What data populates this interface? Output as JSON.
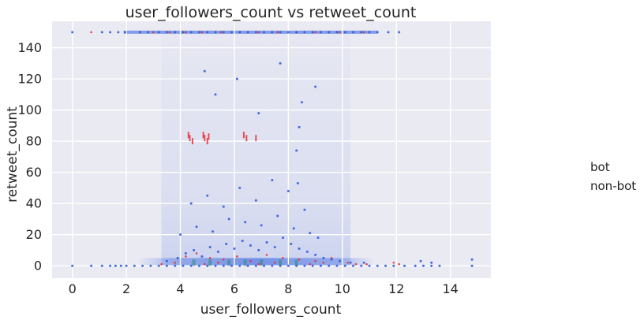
{
  "chart_data": {
    "type": "scatter",
    "title": "user_followers_count vs retweet_count",
    "xlabel": "user_followers_count",
    "ylabel": "retweet_count",
    "xlim": [
      -0.75,
      15.5
    ],
    "ylim": [
      -8,
      157
    ],
    "xticks": [
      0,
      2,
      4,
      6,
      8,
      10,
      12,
      14
    ],
    "yticks": [
      0,
      20,
      40,
      60,
      80,
      100,
      120,
      140
    ],
    "grid": true,
    "legend": {
      "placement": "right"
    },
    "colors": {
      "background": "#eaeaf2",
      "grid": "#ffffff",
      "bot": "#e8272a",
      "non_bot": "#2f5ce0",
      "overlap": "#2a8a7a"
    },
    "series": [
      {
        "name": "bot",
        "color": "#e8272a",
        "points": [
          [
            0.7,
            150
          ],
          [
            2.5,
            150
          ],
          [
            3.0,
            150
          ],
          [
            3.6,
            150
          ],
          [
            4.2,
            150
          ],
          [
            4.8,
            150
          ],
          [
            5.5,
            150
          ],
          [
            6.2,
            150
          ],
          [
            6.9,
            150
          ],
          [
            7.6,
            150
          ],
          [
            8.3,
            150
          ],
          [
            9.0,
            150
          ],
          [
            9.9,
            150
          ],
          [
            10.8,
            150
          ],
          [
            4.3,
            84
          ],
          [
            4.35,
            82
          ],
          [
            4.45,
            80
          ],
          [
            4.85,
            84
          ],
          [
            4.9,
            82
          ],
          [
            5.0,
            80
          ],
          [
            5.05,
            83
          ],
          [
            6.35,
            84
          ],
          [
            6.45,
            82
          ],
          [
            6.8,
            82
          ],
          [
            4.2,
            6
          ],
          [
            4.6,
            8
          ],
          [
            5.1,
            5
          ],
          [
            5.6,
            4
          ],
          [
            6.1,
            6
          ],
          [
            6.6,
            3
          ],
          [
            7.2,
            7
          ],
          [
            7.8,
            5
          ],
          [
            8.4,
            4
          ],
          [
            9.0,
            3
          ],
          [
            9.6,
            5
          ],
          [
            10.2,
            2
          ],
          [
            10.9,
            1
          ],
          [
            11.9,
            2
          ],
          [
            12.1,
            1
          ],
          [
            3.3,
            1
          ],
          [
            3.8,
            2
          ],
          [
            4.9,
            1
          ],
          [
            5.4,
            2
          ],
          [
            6.9,
            1
          ],
          [
            7.5,
            2
          ],
          [
            8.8,
            1
          ],
          [
            9.3,
            2
          ],
          [
            10.5,
            1
          ]
        ]
      },
      {
        "name": "non-bot",
        "color": "#2f5ce0",
        "points": [
          [
            0.0,
            150
          ],
          [
            1.1,
            150
          ],
          [
            1.4,
            150
          ],
          [
            1.7,
            150
          ],
          [
            1.95,
            150
          ],
          [
            2.5,
            150
          ],
          [
            2.8,
            150
          ],
          [
            3.2,
            150
          ],
          [
            3.5,
            150
          ],
          [
            3.8,
            150
          ],
          [
            4.1,
            150
          ],
          [
            4.4,
            150
          ],
          [
            4.7,
            150
          ],
          [
            5.0,
            150
          ],
          [
            5.3,
            150
          ],
          [
            5.6,
            150
          ],
          [
            5.9,
            150
          ],
          [
            6.2,
            150
          ],
          [
            6.5,
            150
          ],
          [
            6.8,
            150
          ],
          [
            7.1,
            150
          ],
          [
            7.4,
            150
          ],
          [
            7.7,
            150
          ],
          [
            8.0,
            150
          ],
          [
            8.3,
            150
          ],
          [
            8.6,
            150
          ],
          [
            8.9,
            150
          ],
          [
            9.2,
            150
          ],
          [
            9.5,
            150
          ],
          [
            9.8,
            150
          ],
          [
            10.1,
            150
          ],
          [
            10.4,
            150
          ],
          [
            10.7,
            150
          ],
          [
            11.0,
            150
          ],
          [
            11.3,
            150
          ],
          [
            11.7,
            150
          ],
          [
            12.1,
            150
          ],
          [
            0.0,
            0
          ],
          [
            0.7,
            0
          ],
          [
            1.1,
            0
          ],
          [
            1.4,
            0
          ],
          [
            1.6,
            0
          ],
          [
            1.8,
            0
          ],
          [
            2.0,
            0
          ],
          [
            2.3,
            0
          ],
          [
            2.6,
            0
          ],
          [
            2.9,
            0
          ],
          [
            3.2,
            0
          ],
          [
            3.5,
            0
          ],
          [
            3.8,
            0
          ],
          [
            4.1,
            0
          ],
          [
            4.4,
            0
          ],
          [
            4.7,
            0
          ],
          [
            5.0,
            0
          ],
          [
            5.3,
            0
          ],
          [
            5.6,
            0
          ],
          [
            5.9,
            0
          ],
          [
            6.2,
            0
          ],
          [
            6.5,
            0
          ],
          [
            6.8,
            0
          ],
          [
            7.1,
            0
          ],
          [
            7.4,
            0
          ],
          [
            7.7,
            0
          ],
          [
            8.0,
            0
          ],
          [
            8.3,
            0
          ],
          [
            8.6,
            0
          ],
          [
            8.9,
            0
          ],
          [
            9.2,
            0
          ],
          [
            9.5,
            0
          ],
          [
            9.8,
            0
          ],
          [
            10.1,
            0
          ],
          [
            10.4,
            0
          ],
          [
            10.7,
            0
          ],
          [
            11.0,
            0
          ],
          [
            11.3,
            0
          ],
          [
            11.6,
            0
          ],
          [
            11.9,
            0
          ],
          [
            12.3,
            0
          ],
          [
            12.7,
            0
          ],
          [
            13.0,
            0
          ],
          [
            13.3,
            0
          ],
          [
            13.6,
            0
          ],
          [
            14.8,
            0
          ],
          [
            3.5,
            3
          ],
          [
            3.9,
            5
          ],
          [
            4.2,
            8
          ],
          [
            4.5,
            10
          ],
          [
            4.8,
            6
          ],
          [
            5.1,
            12
          ],
          [
            5.4,
            9
          ],
          [
            5.7,
            14
          ],
          [
            6.0,
            11
          ],
          [
            6.3,
            16
          ],
          [
            6.6,
            13
          ],
          [
            6.9,
            10
          ],
          [
            7.2,
            15
          ],
          [
            7.5,
            12
          ],
          [
            7.8,
            18
          ],
          [
            8.1,
            14
          ],
          [
            8.4,
            11
          ],
          [
            8.7,
            9
          ],
          [
            9.0,
            7
          ],
          [
            9.3,
            5
          ],
          [
            9.6,
            4
          ],
          [
            9.9,
            3
          ],
          [
            10.3,
            2
          ],
          [
            10.8,
            2
          ],
          [
            4.0,
            20
          ],
          [
            4.6,
            25
          ],
          [
            5.2,
            22
          ],
          [
            5.8,
            30
          ],
          [
            6.4,
            28
          ],
          [
            7.0,
            26
          ],
          [
            7.6,
            32
          ],
          [
            8.2,
            24
          ],
          [
            8.8,
            21
          ],
          [
            9.1,
            18
          ],
          [
            4.4,
            40
          ],
          [
            5.0,
            45
          ],
          [
            5.6,
            38
          ],
          [
            6.2,
            50
          ],
          [
            6.8,
            42
          ],
          [
            7.4,
            55
          ],
          [
            8.0,
            48
          ],
          [
            8.6,
            36
          ],
          [
            8.4,
            89
          ],
          [
            8.35,
            53
          ],
          [
            8.3,
            74
          ],
          [
            5.3,
            110
          ],
          [
            6.1,
            120
          ],
          [
            6.9,
            98
          ],
          [
            7.7,
            130
          ],
          [
            8.5,
            105
          ],
          [
            4.9,
            125
          ],
          [
            9.0,
            115
          ],
          [
            14.8,
            4
          ],
          [
            13.3,
            2
          ],
          [
            12.9,
            3
          ]
        ]
      }
    ]
  }
}
